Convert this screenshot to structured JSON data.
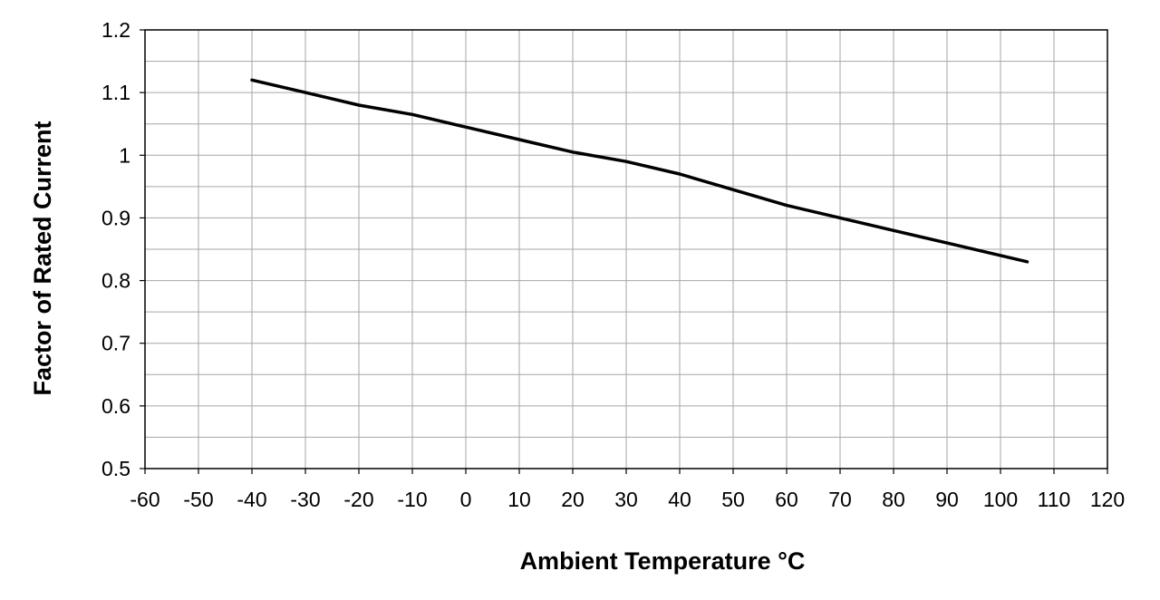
{
  "chart_data": {
    "type": "line",
    "title": "",
    "xlabel": "Ambient Temperature °C",
    "ylabel": "Factor of Rated Current",
    "xlim": [
      -60,
      120
    ],
    "ylim": [
      0.5,
      1.2
    ],
    "x_ticks": [
      "-60",
      "-50",
      "-40",
      "-30",
      "-20",
      "-10",
      "0",
      "10",
      "20",
      "30",
      "40",
      "50",
      "60",
      "70",
      "80",
      "90",
      "100",
      "110",
      "120"
    ],
    "y_ticks": [
      "0.5",
      "0.6",
      "0.7",
      "0.8",
      "0.9",
      "1",
      "1.1",
      "1.2"
    ],
    "grid": true,
    "legend": "none",
    "series": [
      {
        "color": "#000000",
        "x": [
          -40,
          -30,
          -20,
          -10,
          0,
          10,
          20,
          30,
          40,
          50,
          60,
          70,
          80,
          90,
          105
        ],
        "values": [
          1.12,
          1.1,
          1.08,
          1.065,
          1.045,
          1.025,
          1.005,
          0.99,
          0.97,
          0.945,
          0.92,
          0.9,
          0.88,
          0.86,
          0.83
        ]
      }
    ]
  }
}
